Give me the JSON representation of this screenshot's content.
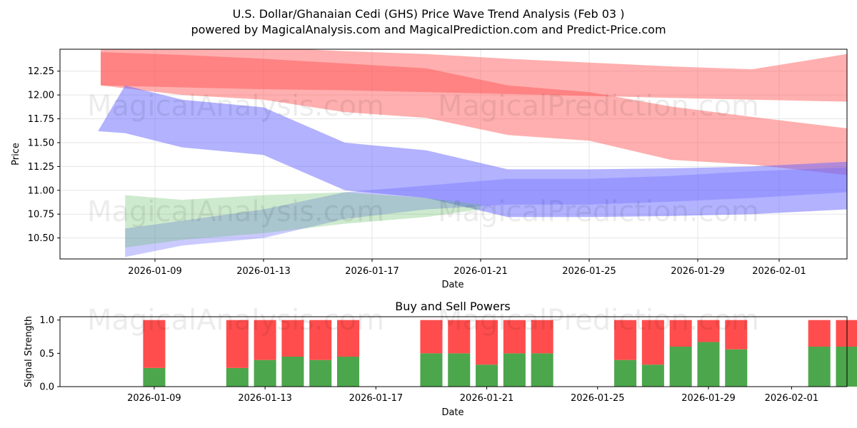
{
  "title_line1": "U.S. Dollar/Ghanaian Cedi (GHS) Price Wave Trend Analysis (Feb 03 )",
  "title_line2": "powered by MagicalAnalysis.com and MagicalPrediction.com and Predict-Price.com",
  "watermarks": [
    "MagicalAnalysis.com",
    "MagicalPrediction.com"
  ],
  "colors": {
    "red": "#ff4d4d",
    "blue": "#6666ff",
    "green": "#5cb85c",
    "buy": "#4ca64c",
    "sell": "#ff4d4d"
  },
  "chart_data": [
    {
      "type": "area",
      "title": "U.S. Dollar/Ghanaian Cedi (GHS) Price Wave Trend Analysis (Feb 03 )",
      "xlabel": "Date",
      "ylabel": "Price",
      "xlim": [
        "2026-01-06.5",
        "2026-02-04.5"
      ],
      "ylim": [
        10.28,
        12.48
      ],
      "xticks": [
        "2026-01-09",
        "2026-01-13",
        "2026-01-17",
        "2026-01-21",
        "2026-01-25",
        "2026-01-29",
        "2026-02-01"
      ],
      "xtick_days": [
        3,
        7,
        11,
        15,
        19,
        23,
        26
      ],
      "yticks": [
        10.5,
        10.75,
        11.0,
        11.25,
        11.5,
        11.75,
        12.0,
        12.25
      ],
      "ytick_labels": [
        "10.50",
        "10.75",
        "11.00",
        "11.25",
        "11.50",
        "11.75",
        "12.00",
        "12.25"
      ],
      "grid": true,
      "series": [
        {
          "name": "red-wave-upper",
          "color": "#ff4d4d",
          "opacity": 0.45,
          "x": [
            1.0,
            4.0,
            7.0,
            10.0,
            13.0,
            16.0,
            19.0,
            22.0,
            25.0,
            28.5
          ],
          "upper": [
            12.5,
            12.5,
            12.5,
            12.46,
            12.43,
            12.38,
            12.34,
            12.3,
            12.27,
            12.43
          ],
          "lower": [
            12.1,
            12.08,
            12.06,
            12.05,
            12.03,
            12.01,
            11.99,
            11.97,
            11.95,
            11.93
          ]
        },
        {
          "name": "red-wave-lower",
          "color": "#ff4d4d",
          "opacity": 0.45,
          "x": [
            1.0,
            4.0,
            7.0,
            10.0,
            13.0,
            16.0,
            19.0,
            22.0,
            25.0,
            28.5
          ],
          "upper": [
            12.45,
            12.42,
            12.38,
            12.33,
            12.28,
            12.1,
            12.03,
            11.88,
            11.77,
            11.65
          ],
          "lower": [
            12.1,
            12.0,
            11.95,
            11.82,
            11.76,
            11.58,
            11.52,
            11.32,
            11.27,
            11.16
          ]
        },
        {
          "name": "blue-wave",
          "color": "#6666ff",
          "opacity": 0.5,
          "x": [
            0.9,
            1.9,
            4.0,
            7.0,
            10.0,
            13.0,
            16.0,
            19.0,
            22.0,
            25.0,
            28.5
          ],
          "upper": [
            11.62,
            12.1,
            11.95,
            11.87,
            11.5,
            11.42,
            11.22,
            11.22,
            11.23,
            11.25,
            11.3
          ],
          "lower": [
            11.62,
            11.6,
            11.45,
            11.37,
            11.0,
            10.92,
            10.72,
            10.72,
            10.73,
            10.75,
            10.8
          ]
        },
        {
          "name": "blue-wave-2",
          "color": "#6666ff",
          "opacity": 0.35,
          "x": [
            1.9,
            4.0,
            7.0,
            10.0,
            13.0,
            16.0,
            19.0,
            22.0,
            25.0,
            28.5
          ],
          "upper": [
            10.6,
            10.68,
            10.8,
            10.98,
            11.05,
            11.12,
            11.12,
            11.15,
            11.2,
            11.24
          ],
          "lower": [
            10.3,
            10.42,
            10.5,
            10.7,
            10.8,
            10.85,
            10.85,
            10.88,
            10.92,
            10.98
          ]
        },
        {
          "name": "green-wave",
          "color": "#5cb85c",
          "opacity": 0.3,
          "x": [
            1.9,
            4.0,
            7.0,
            10.0,
            13.0,
            15.0
          ],
          "upper": [
            10.95,
            10.9,
            10.95,
            10.98,
            10.92,
            10.85
          ],
          "lower": [
            10.4,
            10.48,
            10.55,
            10.65,
            10.72,
            10.8
          ]
        }
      ]
    },
    {
      "type": "bar",
      "title": "Buy and Sell Powers",
      "xlabel": "Date",
      "ylabel": "Signal Strength",
      "ylim": [
        0,
        1.05
      ],
      "yticks": [
        0.0,
        0.5,
        1.0
      ],
      "ytick_labels": [
        "0.0",
        "0.5",
        "1.0"
      ],
      "xticks": [
        "2026-01-09",
        "2026-01-13",
        "2026-01-17",
        "2026-01-21",
        "2026-01-25",
        "2026-01-29",
        "2026-02-01"
      ],
      "xtick_days": [
        3,
        7,
        11,
        15,
        19,
        23,
        26
      ],
      "bar_days": [
        3,
        6,
        7,
        8,
        9,
        10,
        13,
        14,
        15,
        16,
        17,
        20,
        21,
        22,
        23,
        24,
        27,
        28
      ],
      "series": [
        {
          "name": "Buy",
          "color": "#4ca64c",
          "values": [
            0.28,
            0.28,
            0.4,
            0.45,
            0.4,
            0.45,
            0.5,
            0.5,
            0.33,
            0.5,
            0.5,
            0.4,
            0.33,
            0.6,
            0.67,
            0.56,
            0.6,
            0.6
          ]
        },
        {
          "name": "Sell",
          "color": "#ff4d4d",
          "values": [
            0.72,
            0.72,
            0.6,
            0.55,
            0.6,
            0.55,
            0.5,
            0.5,
            0.67,
            0.5,
            0.5,
            0.6,
            0.67,
            0.4,
            0.33,
            0.44,
            0.4,
            0.4
          ]
        }
      ]
    }
  ]
}
